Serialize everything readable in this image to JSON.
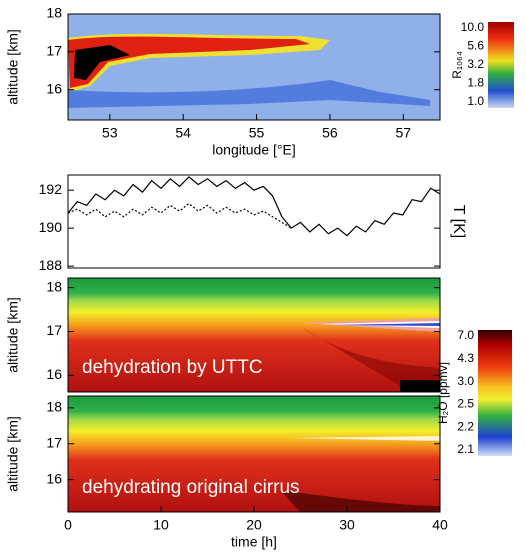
{
  "chart_data": [
    {
      "type": "heatmap",
      "xlabel": "longitude [°E]",
      "ylabel": "altitude [km]",
      "xlim": [
        52.43,
        57.5
      ],
      "xticks": [
        53,
        54,
        55,
        56,
        57
      ],
      "ylim": [
        15.2,
        18
      ],
      "yticks": [
        16,
        17,
        18
      ],
      "colorbar": {
        "label": "R₁₀₆₄",
        "ticks": [
          {
            "value": 10,
            "label": "10.0"
          },
          5.6,
          3.2,
          1.8,
          {
            "value": 1,
            "label": "1.0"
          }
        ]
      }
    },
    {
      "type": "line",
      "ylabel": "T [K]",
      "x": [
        0,
        1,
        2,
        3,
        4,
        5,
        6,
        7,
        8,
        9,
        10,
        11,
        12,
        13,
        14,
        15,
        16,
        17,
        18,
        19,
        20,
        21,
        22,
        23,
        24,
        25,
        26,
        27,
        28,
        29,
        30,
        31,
        32,
        33,
        34,
        35,
        36,
        37,
        38,
        39,
        40
      ],
      "xlim": [
        0,
        40
      ],
      "ylim": [
        187.9,
        192.8
      ],
      "yticks": [
        188,
        190,
        192
      ],
      "series": [
        {
          "color": "#000000",
          "style": "solid",
          "values": [
            190.8,
            191.4,
            191.2,
            191.8,
            191.5,
            192.0,
            191.7,
            192.3,
            191.9,
            192.5,
            192.1,
            192.6,
            192.2,
            192.7,
            192.3,
            192.6,
            192.2,
            192.5,
            192.1,
            192.4,
            192.0,
            192.2,
            191.7,
            190.6,
            190.0,
            190.3,
            189.8,
            190.2,
            189.7,
            190.0,
            189.6,
            190.1,
            189.8,
            190.4,
            190.2,
            190.8,
            190.7,
            191.5,
            191.4,
            192.1,
            191.8
          ]
        },
        {
          "color": "#000000",
          "style": "dotted",
          "values": [
            190.8,
            191.0,
            190.7,
            191.0,
            190.6,
            190.9,
            190.6,
            191.0,
            190.7,
            191.1,
            190.8,
            191.2,
            190.9,
            191.3,
            190.9,
            191.2,
            190.8,
            191.1,
            190.8,
            191.0,
            190.7,
            190.9,
            190.6,
            190.3,
            190.0,
            null,
            null,
            null,
            null,
            null,
            null,
            null,
            null,
            null,
            null,
            null,
            null,
            null,
            null,
            null,
            null
          ]
        }
      ]
    },
    {
      "type": "heatmap",
      "ylabel": "altitude [km]",
      "xlim": [
        0,
        40
      ],
      "ylim": [
        15.62,
        18.22
      ],
      "yticks": [
        16,
        17,
        18
      ],
      "annotation": "dehydration by UTTC"
    },
    {
      "type": "heatmap",
      "ylabel": "altitude [km]",
      "xlabel": "time [h]",
      "xlim": [
        0,
        40
      ],
      "xticks": [
        0,
        10,
        20,
        30,
        40
      ],
      "ylim": [
        15.1,
        18.33
      ],
      "yticks": [
        16,
        17,
        18
      ],
      "annotation": "dehydrating original cirrus",
      "colorbar": {
        "label": "H₂O [ppmv]",
        "ticks": [
          {
            "value": 7,
            "label": "7.0"
          },
          4.3,
          {
            "value": 3,
            "label": "3.0"
          },
          2.5,
          2.2,
          2.1
        ]
      }
    }
  ]
}
